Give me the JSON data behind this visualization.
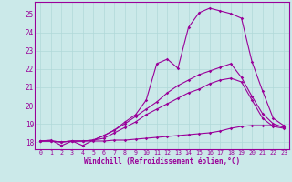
{
  "xlabel": "Windchill (Refroidissement éolien,°C)",
  "bg_color": "#cbe9e9",
  "line_color": "#990099",
  "grid_color": "#b0d8d8",
  "xmin": -0.5,
  "xmax": 23.5,
  "ymin": 17.6,
  "ymax": 25.7,
  "yticks": [
    18,
    19,
    20,
    21,
    22,
    23,
    24,
    25
  ],
  "xticks": [
    0,
    1,
    2,
    3,
    4,
    5,
    6,
    7,
    8,
    9,
    10,
    11,
    12,
    13,
    14,
    15,
    16,
    17,
    18,
    19,
    20,
    21,
    22,
    23
  ],
  "lines": [
    {
      "x": [
        0,
        1,
        2,
        3,
        4,
        5,
        6,
        7,
        8,
        9,
        10,
        11,
        12,
        13,
        14,
        15,
        16,
        17,
        18,
        19,
        20,
        21,
        22,
        23
      ],
      "y": [
        18.05,
        18.1,
        17.8,
        18.05,
        17.8,
        18.1,
        18.35,
        18.65,
        19.1,
        19.5,
        20.3,
        22.3,
        22.55,
        22.05,
        24.3,
        25.1,
        25.35,
        25.2,
        25.05,
        24.8,
        22.4,
        20.8,
        19.3,
        18.9
      ]
    },
    {
      "x": [
        0,
        1,
        2,
        3,
        4,
        5,
        6,
        7,
        8,
        9,
        10,
        11,
        12,
        13,
        14,
        15,
        16,
        17,
        18,
        19,
        20,
        21,
        22,
        23
      ],
      "y": [
        18.05,
        18.05,
        18.0,
        18.05,
        18.05,
        18.1,
        18.35,
        18.65,
        19.0,
        19.4,
        19.8,
        20.2,
        20.7,
        21.1,
        21.4,
        21.7,
        21.9,
        22.1,
        22.3,
        21.55,
        20.5,
        19.55,
        19.0,
        18.8
      ]
    },
    {
      "x": [
        0,
        1,
        2,
        3,
        4,
        5,
        6,
        7,
        8,
        9,
        10,
        11,
        12,
        13,
        14,
        15,
        16,
        17,
        18,
        19,
        20,
        21,
        22,
        23
      ],
      "y": [
        18.05,
        18.05,
        18.0,
        18.05,
        18.05,
        18.1,
        18.2,
        18.5,
        18.8,
        19.1,
        19.5,
        19.8,
        20.1,
        20.4,
        20.7,
        20.9,
        21.2,
        21.4,
        21.5,
        21.3,
        20.3,
        19.3,
        18.85,
        18.75
      ]
    },
    {
      "x": [
        0,
        1,
        2,
        3,
        4,
        5,
        6,
        7,
        8,
        9,
        10,
        11,
        12,
        13,
        14,
        15,
        16,
        17,
        18,
        19,
        20,
        21,
        22,
        23
      ],
      "y": [
        18.05,
        18.05,
        18.0,
        18.05,
        18.05,
        18.05,
        18.05,
        18.1,
        18.1,
        18.15,
        18.2,
        18.25,
        18.3,
        18.35,
        18.4,
        18.45,
        18.5,
        18.6,
        18.75,
        18.85,
        18.9,
        18.9,
        18.9,
        18.85
      ]
    }
  ]
}
